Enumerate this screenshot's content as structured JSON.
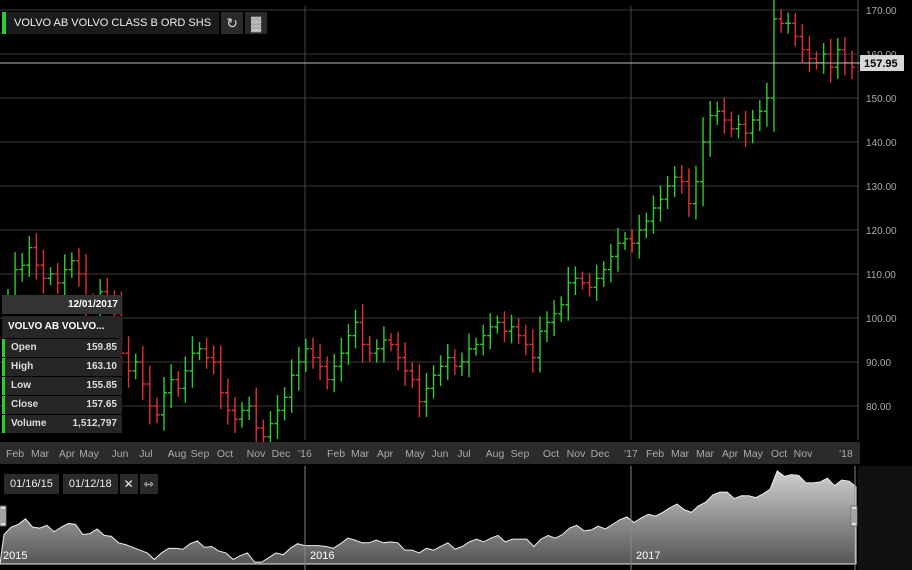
{
  "header": {
    "title": "VOLVO AB VOLVO CLASS B ORD SHS",
    "refresh_icon": "refresh-icon",
    "chart_type_icon": "bar-chart-icon"
  },
  "last_price_label": "157.95",
  "tooltip": {
    "date": "12/01/2017",
    "name": "VOLVO AB VOLVO...",
    "rows": [
      {
        "label": "Open",
        "value": "159.85"
      },
      {
        "label": "High",
        "value": "163.10"
      },
      {
        "label": "Low",
        "value": "155.85"
      },
      {
        "label": "Close",
        "value": "157.65"
      },
      {
        "label": "Volume",
        "value": "1,512,797"
      }
    ]
  },
  "range": {
    "start": "01/16/15",
    "end": "01/12/18",
    "close_icon": "close-icon",
    "expand_icon": "expand-arrows-icon"
  },
  "navigator_labels": [
    "2015",
    "2016",
    "2017"
  ],
  "colors": {
    "up": "#2ecc2e",
    "down": "#e03030",
    "accent": "#2ecc2e"
  },
  "chart_data": {
    "type": "bar",
    "subtype": "ohlc",
    "ylim": [
      72,
      172
    ],
    "yticks": [
      80,
      90,
      100,
      110,
      120,
      130,
      140,
      150,
      160,
      170
    ],
    "ytick_labels": [
      "80.00",
      "90.00",
      "100.00",
      "110.00",
      "120.00",
      "130.00",
      "140.00",
      "150.00",
      "160.00",
      "170.00"
    ],
    "x_labels": [
      "Feb",
      "Mar",
      "Apr",
      "May",
      "Jun",
      "Jul",
      "Aug",
      "Sep",
      "Oct",
      "Nov",
      "Dec",
      "'16",
      "Feb",
      "Mar",
      "Apr",
      "May",
      "Jun",
      "Jul",
      "Aug",
      "Sep",
      "Oct",
      "Nov",
      "Dec",
      "'17",
      "Feb",
      "Mar",
      "Mar",
      "Apr",
      "May",
      "Oct",
      "Nov",
      "'18"
    ],
    "last_price": 157.95,
    "grid": true,
    "closes": [
      105,
      111,
      112,
      116,
      112,
      109,
      110,
      108,
      111,
      113,
      110,
      104,
      103,
      106,
      104,
      101,
      92,
      88,
      90,
      85,
      80,
      78,
      83,
      86,
      84,
      88,
      92,
      93,
      91,
      90,
      83,
      79,
      77,
      79,
      80,
      75,
      73,
      76,
      79,
      82,
      87,
      90,
      93,
      91,
      89,
      86,
      89,
      92,
      96,
      99,
      94,
      92,
      93,
      95,
      94,
      91,
      88,
      86,
      81,
      84,
      87,
      89,
      91,
      89,
      90,
      93,
      94,
      96,
      98,
      99,
      97,
      98,
      96,
      94,
      91,
      97,
      99,
      101,
      103,
      108,
      109,
      108,
      107,
      109,
      111,
      114,
      117,
      118,
      117,
      120,
      122,
      125,
      127,
      130,
      132,
      131,
      126,
      131,
      140,
      146,
      147,
      145,
      143,
      144,
      142,
      145,
      147,
      150,
      168,
      167,
      167,
      164,
      161,
      159,
      158,
      160,
      157,
      161,
      158,
      157
    ],
    "volume_shape": "navigator area follows closes"
  }
}
